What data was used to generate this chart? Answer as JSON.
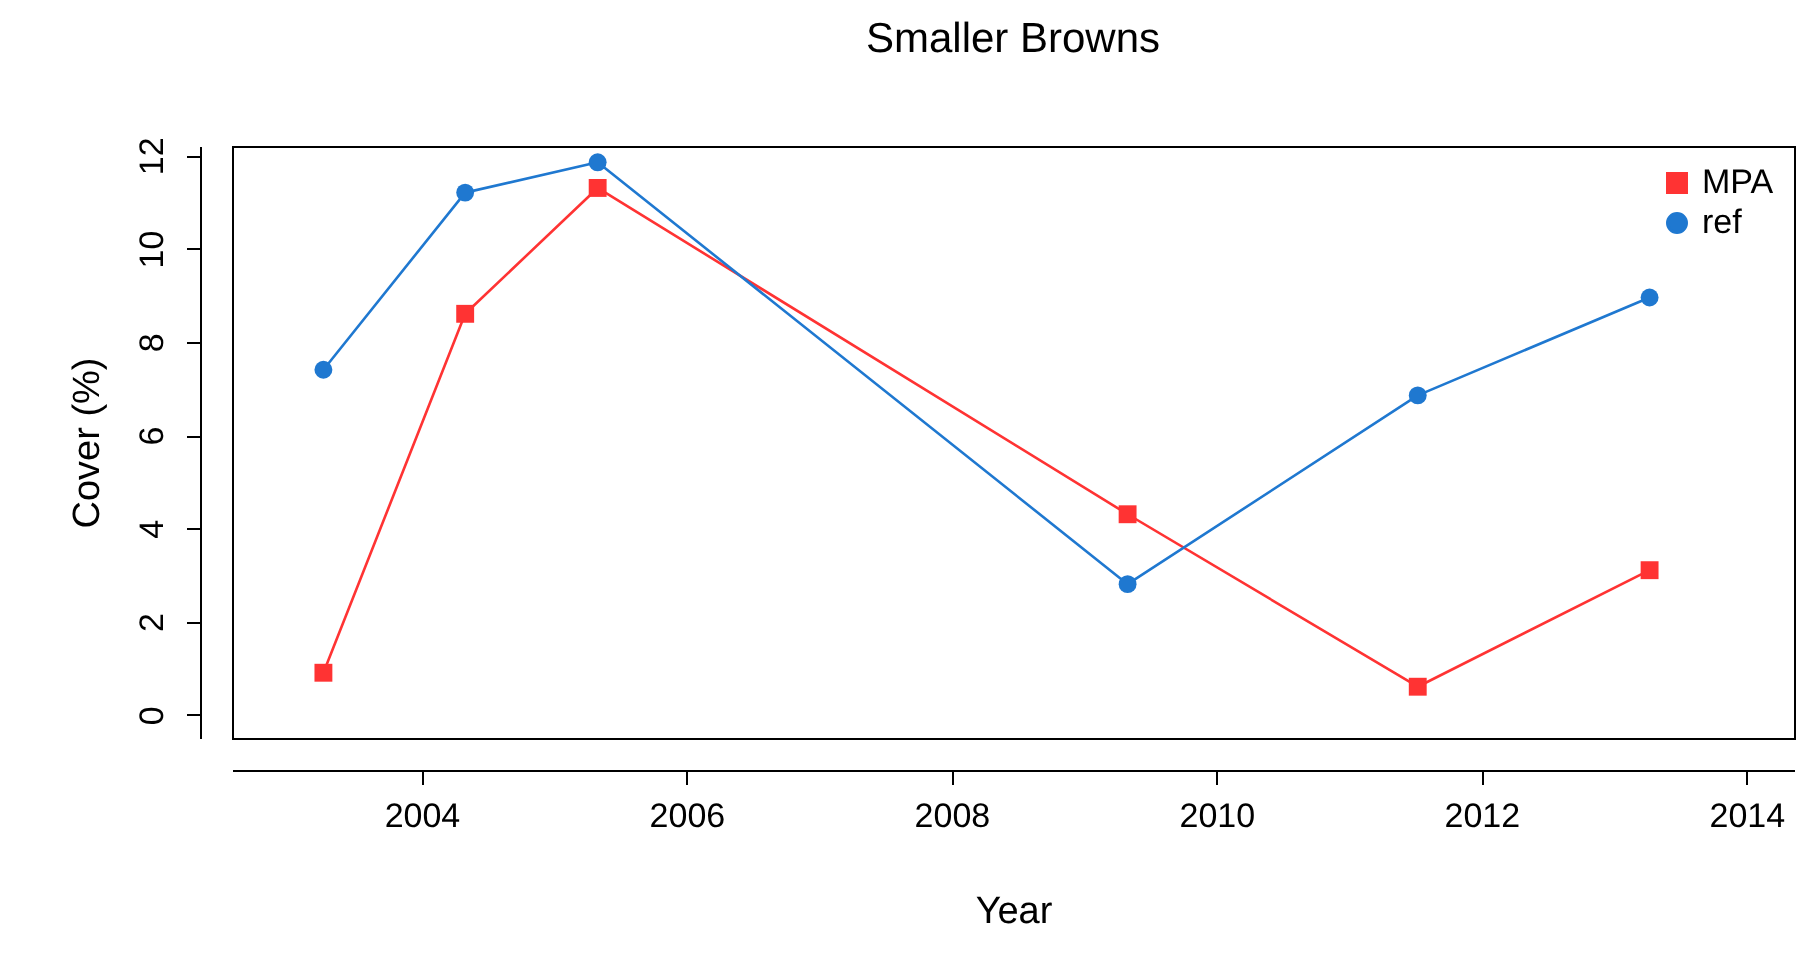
{
  "chart_data": {
    "type": "line",
    "title": "Smaller Browns",
    "xlabel": "Year",
    "ylabel": "Cover (%)",
    "xlim": [
      2002.57,
      2014.36
    ],
    "xticks": [
      2004,
      2006,
      2008,
      2010,
      2012,
      2014
    ],
    "ylim": [
      -0.5,
      12.2
    ],
    "yticks": [
      0,
      2,
      4,
      6,
      8,
      10,
      12
    ],
    "grid": false,
    "legend": "top right",
    "series": [
      {
        "name": "MPA",
        "color": "#ff3333",
        "marker": "square",
        "x": [
          2003.26,
          2004.33,
          2005.33,
          2009.33,
          2011.52,
          2013.27
        ],
        "values": [
          0.9,
          8.6,
          11.3,
          4.3,
          0.6,
          3.1
        ]
      },
      {
        "name": "ref",
        "color": "#1f78d0",
        "marker": "circle",
        "x": [
          2003.26,
          2004.33,
          2005.33,
          2009.33,
          2011.52,
          2013.27
        ],
        "values": [
          7.4,
          11.2,
          11.85,
          2.8,
          6.85,
          8.95
        ]
      }
    ]
  }
}
